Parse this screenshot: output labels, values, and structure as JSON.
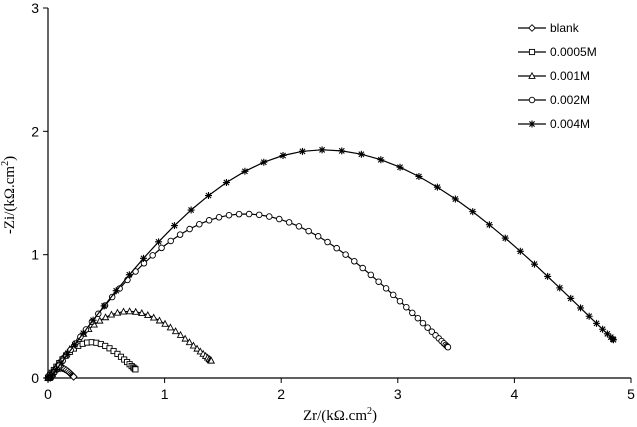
{
  "chart_data": {
    "type": "scatter",
    "xlabel": {
      "main": "Zr/(kΩ.cm",
      "sup": "2",
      "tail": ")"
    },
    "ylabel": {
      "main": "-Zi/(kΩ.cm",
      "sup": "2",
      "tail": ")"
    },
    "xlim": [
      0,
      5
    ],
    "ylim": [
      0,
      3
    ],
    "xticks": [
      "0",
      "1",
      "2",
      "3",
      "4",
      "5"
    ],
    "yticks": [
      "0",
      "1",
      "2",
      "3"
    ],
    "grid": false,
    "legend_position": "top-right",
    "series": [
      {
        "name": "blank",
        "marker": "diamond",
        "rmax": 0.22,
        "start": 0.0,
        "steps": 22
      },
      {
        "name": "0.0005M",
        "marker": "square",
        "rmax": 0.75,
        "start": 0.0,
        "steps": 30
      },
      {
        "name": "0.001M",
        "marker": "triangle",
        "rmax": 1.4,
        "start": 0.0,
        "steps": 42
      },
      {
        "name": "0.002M",
        "marker": "circle",
        "rmax": 3.43,
        "start": 0.02,
        "steps": 62
      },
      {
        "name": "0.004M",
        "marker": "star",
        "rmax": 4.85,
        "start": 0.02,
        "steps": 45
      }
    ],
    "peaks": {
      "blank": [
        0.11,
        0.08
      ],
      "0.0005M": [
        0.37,
        0.29
      ],
      "0.001M": [
        0.69,
        0.54
      ],
      "0.002M": [
        1.68,
        1.33
      ],
      "0.004M": [
        2.35,
        1.85
      ]
    },
    "end_points": {
      "blank": [
        0.22,
        0.01
      ],
      "0.0005M": [
        0.75,
        0.07
      ],
      "0.001M": [
        1.4,
        0.14
      ],
      "0.002M": [
        3.43,
        0.25
      ],
      "0.004M": [
        4.85,
        0.31
      ]
    }
  }
}
